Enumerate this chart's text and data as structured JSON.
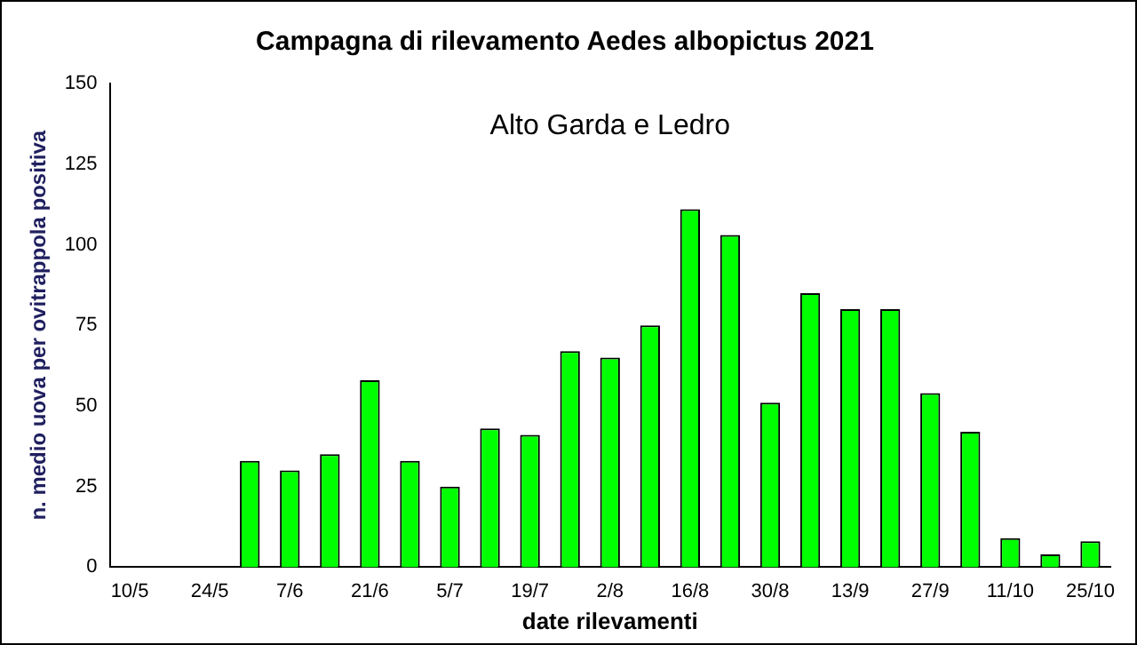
{
  "chart_data": {
    "type": "bar",
    "title": "Campagna di rilevamento Aedes albopictus 2021",
    "xlabel": "date rilevamenti",
    "ylabel": "n. medio uova per ovitrappola positiva",
    "annotations": [
      "Alto Garda e Ledro"
    ],
    "categories": [
      "10/5",
      null,
      "24/5",
      null,
      "7/6",
      null,
      "21/6",
      null,
      "5/7",
      null,
      "19/7",
      null,
      "2/8",
      null,
      "16/8",
      null,
      "30/8",
      null,
      "13/9",
      null,
      "27/9",
      null,
      "11/10",
      null,
      "25/10"
    ],
    "values": [
      null,
      null,
      null,
      33,
      30,
      35,
      58,
      33,
      25,
      43,
      41,
      67,
      65,
      75,
      111,
      103,
      51,
      85,
      80,
      80,
      54,
      42,
      9,
      4,
      8
    ],
    "color": "#00ff00",
    "ylim": [
      0,
      150
    ],
    "yticks": [
      0,
      25,
      50,
      75,
      100,
      125,
      150
    ],
    "grid": false,
    "legend": false
  }
}
